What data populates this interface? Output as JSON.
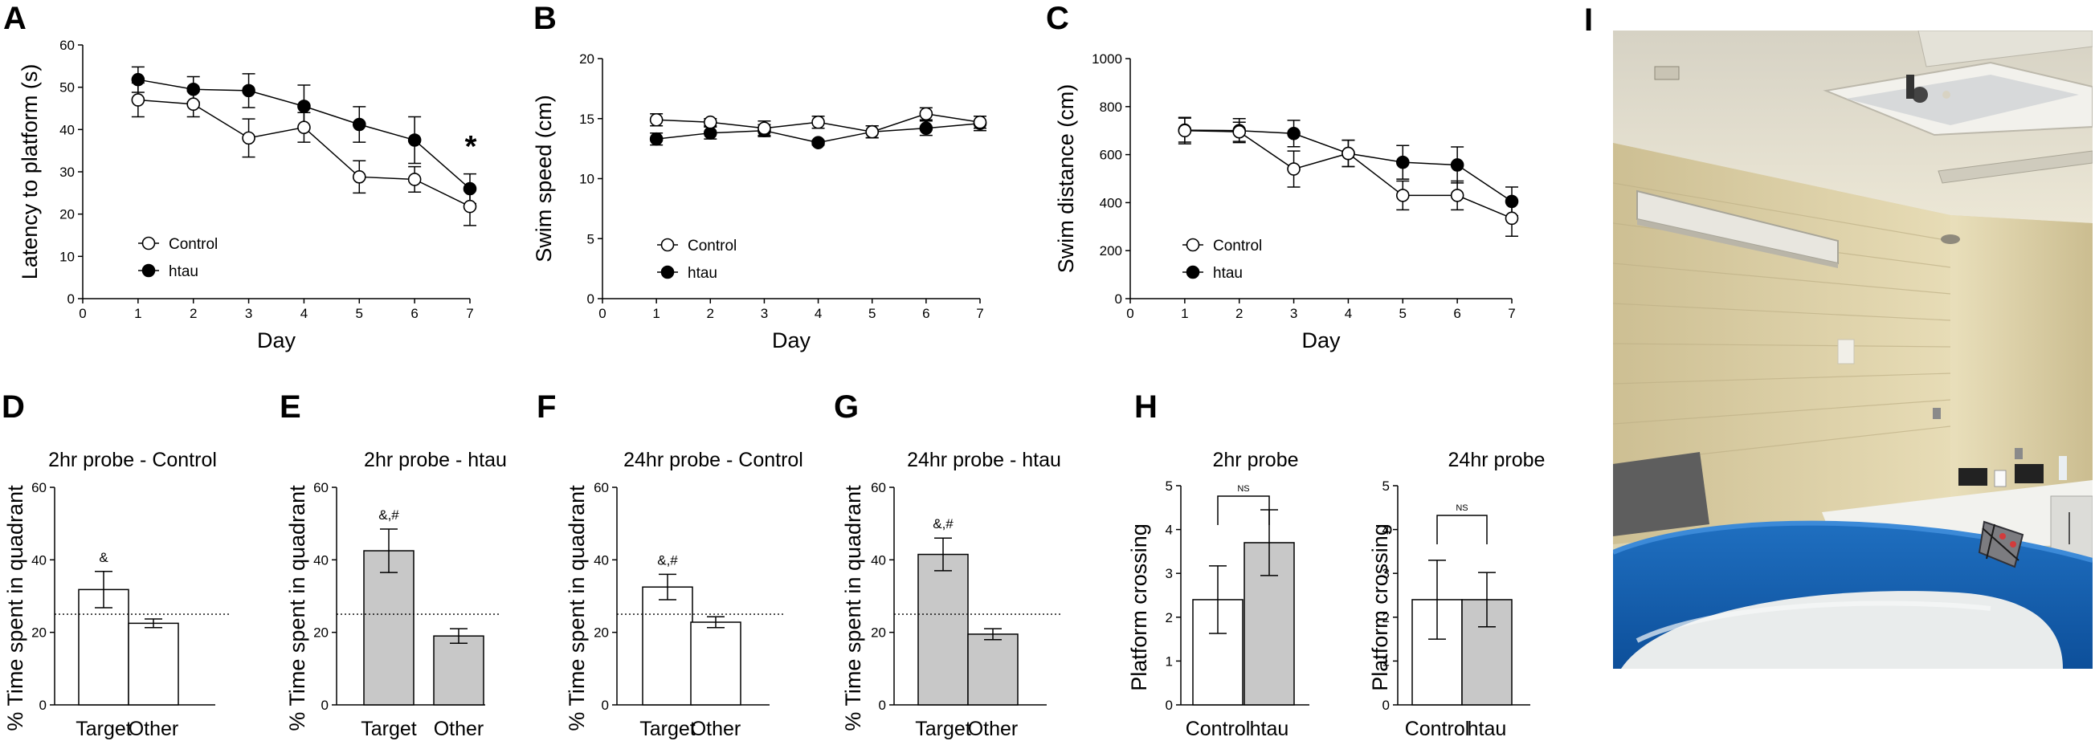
{
  "chart_data": [
    {
      "id": "A",
      "type": "line",
      "panel_label": "A",
      "xlabel": "Day",
      "ylabel": "Latency to platform (s)",
      "xlim": [
        0,
        7
      ],
      "ylim": [
        0,
        60
      ],
      "xticks": [
        "0",
        "1",
        "2",
        "3",
        "4",
        "5",
        "6",
        "7"
      ],
      "yticks": [
        "0",
        "10",
        "20",
        "30",
        "40",
        "50",
        "60"
      ],
      "x": [
        1,
        2,
        3,
        4,
        5,
        6,
        7
      ],
      "series": [
        {
          "name": "Control",
          "marker": "open",
          "values": [
            47,
            46,
            38,
            40.5,
            28.8,
            28.2,
            21.8
          ],
          "errors": [
            4,
            3,
            4.5,
            3.5,
            3.8,
            3,
            4.5
          ]
        },
        {
          "name": "htau",
          "marker": "filled",
          "values": [
            51.8,
            49.5,
            49.2,
            45.5,
            41.2,
            37.5,
            26
          ],
          "errors": [
            3,
            3,
            4,
            5,
            4.2,
            5.5,
            3.5
          ]
        }
      ],
      "annotations": [
        "*"
      ]
    },
    {
      "id": "B",
      "type": "line",
      "panel_label": "B",
      "xlabel": "Day",
      "ylabel": "Swim speed (cm)",
      "xlim": [
        0,
        7
      ],
      "ylim": [
        0,
        20
      ],
      "xticks": [
        "0",
        "1",
        "2",
        "3",
        "4",
        "5",
        "6",
        "7"
      ],
      "yticks": [
        "0",
        "5",
        "10",
        "15",
        "20"
      ],
      "x": [
        1,
        2,
        3,
        4,
        5,
        6,
        7
      ],
      "series": [
        {
          "name": "Control",
          "marker": "open",
          "values": [
            14.9,
            14.7,
            14.2,
            14.7,
            13.9,
            15.4,
            14.7
          ],
          "errors": [
            0.5,
            0.3,
            0.6,
            0.5,
            0.5,
            0.5,
            0.5
          ]
        },
        {
          "name": "htau",
          "marker": "filled",
          "values": [
            13.3,
            13.8,
            14.0,
            13.0,
            13.9,
            14.2,
            14.6
          ],
          "errors": [
            0.5,
            0.5,
            0.5,
            0.2,
            0.5,
            0.6,
            0.6
          ]
        }
      ]
    },
    {
      "id": "C",
      "type": "line",
      "panel_label": "C",
      "xlabel": "Day",
      "ylabel": "Swim distance (cm)",
      "xlim": [
        0,
        7
      ],
      "ylim": [
        0,
        1000
      ],
      "xticks": [
        "0",
        "1",
        "2",
        "3",
        "4",
        "5",
        "6",
        "7"
      ],
      "yticks": [
        "0",
        "200",
        "400",
        "600",
        "800",
        "1000"
      ],
      "x": [
        1,
        2,
        3,
        4,
        5,
        6,
        7
      ],
      "series": [
        {
          "name": "Control",
          "marker": "open",
          "values": [
            700,
            695,
            540,
            605,
            430,
            430,
            335
          ],
          "errors": [
            55,
            40,
            75,
            55,
            60,
            60,
            75
          ]
        },
        {
          "name": "htau",
          "marker": "filled",
          "values": [
            702,
            700,
            688,
            605,
            568,
            557,
            405
          ],
          "errors": [
            50,
            50,
            55,
            55,
            70,
            75,
            60
          ]
        }
      ]
    },
    {
      "id": "D",
      "type": "bar",
      "panel_label": "D",
      "title": "2hr probe - Control",
      "ylabel": "% Time spent in quadrant",
      "ylim": [
        0,
        60
      ],
      "yticks": [
        "0",
        "20",
        "40",
        "60"
      ],
      "categories": [
        "Target",
        "Other"
      ],
      "values": [
        31.8,
        22.5
      ],
      "errors": [
        5,
        1.2
      ],
      "bar_color": "#ffffff",
      "chance_line": 25,
      "annotations": [
        "&"
      ]
    },
    {
      "id": "E",
      "type": "bar",
      "panel_label": "E",
      "title": "2hr probe - htau",
      "ylabel": "% Time spent in quadrant",
      "ylim": [
        0,
        60
      ],
      "yticks": [
        "0",
        "20",
        "40",
        "60"
      ],
      "categories": [
        "Target",
        "Other"
      ],
      "values": [
        42.5,
        19
      ],
      "errors": [
        6,
        2
      ],
      "bar_color": "#c8c8c8",
      "chance_line": 25,
      "annotations": [
        "&,#"
      ]
    },
    {
      "id": "F",
      "type": "bar",
      "panel_label": "F",
      "title": "24hr probe - Control",
      "ylabel": "% Time spent in quadrant",
      "ylim": [
        0,
        60
      ],
      "yticks": [
        "0",
        "20",
        "40",
        "60"
      ],
      "categories": [
        "Target",
        "Other"
      ],
      "values": [
        32.5,
        22.8
      ],
      "errors": [
        3.5,
        1.5
      ],
      "bar_color": "#ffffff",
      "chance_line": 25,
      "annotations": [
        "&,#"
      ]
    },
    {
      "id": "G",
      "type": "bar",
      "panel_label": "G",
      "title": "24hr probe - htau",
      "ylabel": "% Time spent in quadrant",
      "ylim": [
        0,
        60
      ],
      "yticks": [
        "0",
        "20",
        "40",
        "60"
      ],
      "categories": [
        "Target",
        "Other"
      ],
      "values": [
        41.5,
        19.5
      ],
      "errors": [
        4.5,
        1.5
      ],
      "bar_color": "#c8c8c8",
      "chance_line": 25,
      "annotations": [
        "&,#"
      ]
    },
    {
      "id": "H1",
      "type": "bar",
      "panel_label": "H",
      "title": "2hr probe",
      "ylabel": "Platform crossing",
      "ylim": [
        0,
        5
      ],
      "yticks": [
        "0",
        "1",
        "2",
        "3",
        "4",
        "5"
      ],
      "categories": [
        "Control",
        "htau"
      ],
      "values": [
        2.4,
        3.7
      ],
      "errors": [
        0.77,
        0.75
      ],
      "bar_colors": [
        "#ffffff",
        "#c8c8c8"
      ],
      "annotations": [
        "NS"
      ]
    },
    {
      "id": "H2",
      "type": "bar",
      "panel_label": "",
      "title": "24hr probe",
      "ylabel": "Platform crossing",
      "ylim": [
        0,
        5
      ],
      "yticks": [
        "0",
        "1",
        "2",
        "3",
        "4",
        "5"
      ],
      "categories": [
        "Control",
        "htau"
      ],
      "values": [
        2.4,
        2.4
      ],
      "errors": [
        0.9,
        0.62
      ],
      "bar_colors": [
        "#ffffff",
        "#c8c8c8"
      ],
      "annotations": [
        "NS"
      ]
    }
  ],
  "photo": {
    "panel_label": "I"
  }
}
